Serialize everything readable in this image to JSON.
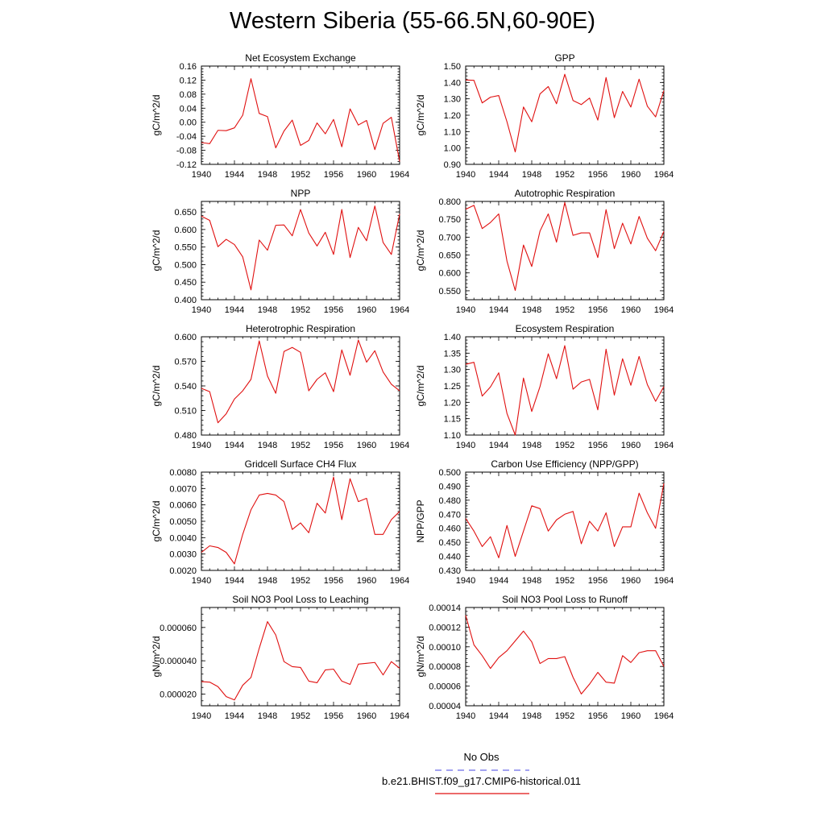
{
  "figure": {
    "title": "Western Siberia (55-66.5N,60-90E)",
    "legend": [
      {
        "label": "No Obs",
        "color": "#6a6ae6",
        "dash": true
      },
      {
        "label": "b.e21.BHIST.f09_g17.CMIP6-historical.011",
        "color": "#e01010",
        "dash": false
      }
    ]
  },
  "colors": {
    "series": "#e01010",
    "obs": "#6a6ae6"
  },
  "chart_data": [
    {
      "type": "line",
      "title": "Net Ecosystem Exchange",
      "ylabel": "gC/m^2/d",
      "xlim": [
        1940,
        1964
      ],
      "ylim": [
        -0.12,
        0.16
      ],
      "xticks": [
        "1940",
        "1944",
        "1948",
        "1952",
        "1956",
        "1960",
        "1964"
      ],
      "yticks": [
        "-0.12",
        "-0.08",
        "-0.04",
        "0.00",
        "0.04",
        "0.08",
        "0.12",
        "0.16"
      ],
      "x": [
        1940,
        1941,
        1942,
        1943,
        1944,
        1945,
        1946,
        1947,
        1948,
        1949,
        1950,
        1951,
        1952,
        1953,
        1954,
        1955,
        1956,
        1957,
        1958,
        1959,
        1960,
        1961,
        1962,
        1963,
        1964
      ],
      "values": [
        -0.058,
        -0.061,
        -0.023,
        -0.024,
        -0.016,
        0.02,
        0.124,
        0.025,
        0.016,
        -0.073,
        -0.025,
        0.006,
        -0.066,
        -0.052,
        -0.002,
        -0.033,
        0.008,
        -0.07,
        0.038,
        -0.008,
        0.005,
        -0.078,
        -0.003,
        0.014,
        -0.112
      ]
    },
    {
      "type": "line",
      "title": "GPP",
      "ylabel": "gC/m^2/d",
      "xlim": [
        1940,
        1964
      ],
      "ylim": [
        0.9,
        1.5
      ],
      "xticks": [
        "1940",
        "1944",
        "1948",
        "1952",
        "1956",
        "1960",
        "1964"
      ],
      "yticks": [
        "0.90",
        "1.00",
        "1.10",
        "1.20",
        "1.30",
        "1.40",
        "1.50"
      ],
      "x": [
        1940,
        1941,
        1942,
        1943,
        1944,
        1945,
        1946,
        1947,
        1948,
        1949,
        1950,
        1951,
        1952,
        1953,
        1954,
        1955,
        1956,
        1957,
        1958,
        1959,
        1960,
        1961,
        1962,
        1963,
        1964
      ],
      "values": [
        1.415,
        1.413,
        1.275,
        1.31,
        1.32,
        1.16,
        0.976,
        1.25,
        1.16,
        1.33,
        1.375,
        1.27,
        1.45,
        1.29,
        1.265,
        1.305,
        1.17,
        1.43,
        1.185,
        1.345,
        1.25,
        1.42,
        1.255,
        1.19,
        1.35
      ]
    },
    {
      "type": "line",
      "title": "NPP",
      "ylabel": "gC/m^2/d",
      "xlim": [
        1940,
        1964
      ],
      "ylim": [
        0.4,
        0.68
      ],
      "xticks": [
        "1940",
        "1944",
        "1948",
        "1952",
        "1956",
        "1960",
        "1964"
      ],
      "yticks": [
        "0.400",
        "0.450",
        "0.500",
        "0.550",
        "0.600",
        "0.650"
      ],
      "x": [
        1940,
        1941,
        1942,
        1943,
        1944,
        1945,
        1946,
        1947,
        1948,
        1949,
        1950,
        1951,
        1952,
        1953,
        1954,
        1955,
        1956,
        1957,
        1958,
        1959,
        1960,
        1961,
        1962,
        1963,
        1964
      ],
      "values": [
        0.638,
        0.626,
        0.551,
        0.572,
        0.557,
        0.522,
        0.428,
        0.57,
        0.541,
        0.612,
        0.613,
        0.582,
        0.657,
        0.59,
        0.553,
        0.592,
        0.529,
        0.657,
        0.52,
        0.606,
        0.568,
        0.667,
        0.563,
        0.529,
        0.644
      ]
    },
    {
      "type": "line",
      "title": "Autotrophic Respiration",
      "ylabel": "gC/m^2/d",
      "xlim": [
        1940,
        1964
      ],
      "ylim": [
        0.525,
        0.8
      ],
      "xticks": [
        "1940",
        "1944",
        "1948",
        "1952",
        "1956",
        "1960",
        "1964"
      ],
      "yticks": [
        "0.550",
        "0.600",
        "0.650",
        "0.700",
        "0.750",
        "0.800"
      ],
      "x": [
        1940,
        1941,
        1942,
        1943,
        1944,
        1945,
        1946,
        1947,
        1948,
        1949,
        1950,
        1951,
        1952,
        1953,
        1954,
        1955,
        1956,
        1957,
        1958,
        1959,
        1960,
        1961,
        1962,
        1963,
        1964
      ],
      "values": [
        0.778,
        0.789,
        0.724,
        0.741,
        0.765,
        0.633,
        0.551,
        0.678,
        0.618,
        0.717,
        0.765,
        0.686,
        0.797,
        0.705,
        0.712,
        0.712,
        0.643,
        0.777,
        0.668,
        0.739,
        0.681,
        0.758,
        0.697,
        0.662,
        0.716
      ]
    },
    {
      "type": "line",
      "title": "Heterotrophic Respiration",
      "ylabel": "gC/m^2/d",
      "xlim": [
        1940,
        1964
      ],
      "ylim": [
        0.48,
        0.6
      ],
      "xticks": [
        "1940",
        "1944",
        "1948",
        "1952",
        "1956",
        "1960",
        "1964"
      ],
      "yticks": [
        "0.480",
        "0.510",
        "0.540",
        "0.570",
        "0.600"
      ],
      "x": [
        1940,
        1941,
        1942,
        1943,
        1944,
        1945,
        1946,
        1947,
        1948,
        1949,
        1950,
        1951,
        1952,
        1953,
        1954,
        1955,
        1956,
        1957,
        1958,
        1959,
        1960,
        1961,
        1962,
        1963,
        1964
      ],
      "values": [
        0.537,
        0.533,
        0.495,
        0.506,
        0.524,
        0.534,
        0.548,
        0.595,
        0.552,
        0.531,
        0.582,
        0.587,
        0.581,
        0.534,
        0.548,
        0.556,
        0.533,
        0.584,
        0.553,
        0.596,
        0.569,
        0.583,
        0.557,
        0.542,
        0.534
      ]
    },
    {
      "type": "line",
      "title": "Ecosystem Respiration",
      "ylabel": "gC/m^2/d",
      "xlim": [
        1940,
        1964
      ],
      "ylim": [
        1.1,
        1.4
      ],
      "xticks": [
        "1940",
        "1944",
        "1948",
        "1952",
        "1956",
        "1960",
        "1964"
      ],
      "yticks": [
        "1.10",
        "1.15",
        "1.20",
        "1.25",
        "1.30",
        "1.35",
        "1.40"
      ],
      "x": [
        1940,
        1941,
        1942,
        1943,
        1944,
        1945,
        1946,
        1947,
        1948,
        1949,
        1950,
        1951,
        1952,
        1953,
        1954,
        1955,
        1956,
        1957,
        1958,
        1959,
        1960,
        1961,
        1962,
        1963,
        1964
      ],
      "values": [
        1.316,
        1.322,
        1.219,
        1.247,
        1.29,
        1.166,
        1.1,
        1.274,
        1.172,
        1.248,
        1.348,
        1.272,
        1.373,
        1.24,
        1.262,
        1.27,
        1.177,
        1.362,
        1.222,
        1.333,
        1.252,
        1.34,
        1.254,
        1.203,
        1.248
      ]
    },
    {
      "type": "line",
      "title": "Gridcell Surface CH4 Flux",
      "ylabel": "gC/m^2/d",
      "xlim": [
        1940,
        1964
      ],
      "ylim": [
        0.002,
        0.008
      ],
      "xticks": [
        "1940",
        "1944",
        "1948",
        "1952",
        "1956",
        "1960",
        "1964"
      ],
      "yticks": [
        "0.0020",
        "0.0030",
        "0.0040",
        "0.0050",
        "0.0060",
        "0.0070",
        "0.0080"
      ],
      "x": [
        1940,
        1941,
        1942,
        1943,
        1944,
        1945,
        1946,
        1947,
        1948,
        1949,
        1950,
        1951,
        1952,
        1953,
        1954,
        1955,
        1956,
        1957,
        1958,
        1959,
        1960,
        1961,
        1962,
        1963,
        1964
      ],
      "values": [
        0.0031,
        0.0035,
        0.0034,
        0.0031,
        0.0024,
        0.0042,
        0.0057,
        0.0066,
        0.0067,
        0.0066,
        0.0062,
        0.0045,
        0.0049,
        0.0043,
        0.0061,
        0.0055,
        0.0077,
        0.0051,
        0.0076,
        0.0062,
        0.0064,
        0.0042,
        0.0042,
        0.0051,
        0.0056
      ]
    },
    {
      "type": "line",
      "title": "Carbon Use Efficiency (NPP/GPP)",
      "ylabel": "NPP/GPP",
      "xlim": [
        1940,
        1964
      ],
      "ylim": [
        0.43,
        0.5
      ],
      "xticks": [
        "1940",
        "1944",
        "1948",
        "1952",
        "1956",
        "1960",
        "1964"
      ],
      "yticks": [
        "0.430",
        "0.440",
        "0.450",
        "0.460",
        "0.470",
        "0.480",
        "0.490",
        "0.500"
      ],
      "x": [
        1940,
        1941,
        1942,
        1943,
        1944,
        1945,
        1946,
        1947,
        1948,
        1949,
        1950,
        1951,
        1952,
        1953,
        1954,
        1955,
        1956,
        1957,
        1958,
        1959,
        1960,
        1961,
        1962,
        1963,
        1964
      ],
      "values": [
        0.467,
        0.458,
        0.447,
        0.454,
        0.439,
        0.462,
        0.44,
        0.458,
        0.476,
        0.474,
        0.458,
        0.466,
        0.47,
        0.472,
        0.449,
        0.465,
        0.458,
        0.471,
        0.447,
        0.461,
        0.461,
        0.485,
        0.471,
        0.46,
        0.492
      ]
    },
    {
      "type": "line",
      "title": "Soil NO3 Pool Loss to Leaching",
      "ylabel": "gN/m^2/d",
      "xlim": [
        1940,
        1964
      ],
      "ylim": [
        1.3e-05,
        7.2e-05
      ],
      "xticks": [
        "1940",
        "1944",
        "1948",
        "1952",
        "1956",
        "1960",
        "1964"
      ],
      "yticks": [
        "0.000020",
        "0.000040",
        "0.000060"
      ],
      "x": [
        1940,
        1941,
        1942,
        1943,
        1944,
        1945,
        1946,
        1947,
        1948,
        1949,
        1950,
        1951,
        1952,
        1953,
        1954,
        1955,
        1956,
        1957,
        1958,
        1959,
        1960,
        1961,
        1962,
        1963,
        1964
      ],
      "values": [
        2.75e-05,
        2.72e-05,
        2.45e-05,
        1.85e-05,
        1.65e-05,
        2.53e-05,
        3e-05,
        4.75e-05,
        6.35e-05,
        5.55e-05,
        3.95e-05,
        3.65e-05,
        3.6e-05,
        2.78e-05,
        2.68e-05,
        3.45e-05,
        3.5e-05,
        2.78e-05,
        2.58e-05,
        3.8e-05,
        3.85e-05,
        3.9e-05,
        3.15e-05,
        3.95e-05,
        3.55e-05
      ]
    },
    {
      "type": "line",
      "title": "Soil NO3 Pool Loss to Runoff",
      "ylabel": "gN/m^2/d",
      "xlim": [
        1940,
        1964
      ],
      "ylim": [
        4e-05,
        0.00014
      ],
      "xticks": [
        "1940",
        "1944",
        "1948",
        "1952",
        "1956",
        "1960",
        "1964"
      ],
      "yticks": [
        "0.00004",
        "0.00006",
        "0.00008",
        "0.00010",
        "0.00012",
        "0.00014"
      ],
      "x": [
        1940,
        1941,
        1942,
        1943,
        1944,
        1945,
        1946,
        1947,
        1948,
        1949,
        1950,
        1951,
        1952,
        1953,
        1954,
        1955,
        1956,
        1957,
        1958,
        1959,
        1960,
        1961,
        1962,
        1963,
        1964
      ],
      "values": [
        0.000132,
        0.000102,
        9.1e-05,
        7.8e-05,
        8.9e-05,
        9.6e-05,
        0.000106,
        0.000116,
        0.000105,
        8.3e-05,
        8.8e-05,
        8.8e-05,
        9e-05,
        6.9e-05,
        5.2e-05,
        6.2e-05,
        7.4e-05,
        6.4e-05,
        6.3e-05,
        9.1e-05,
        8.4e-05,
        9.4e-05,
        9.6e-05,
        9.6e-05,
        8e-05
      ]
    }
  ]
}
